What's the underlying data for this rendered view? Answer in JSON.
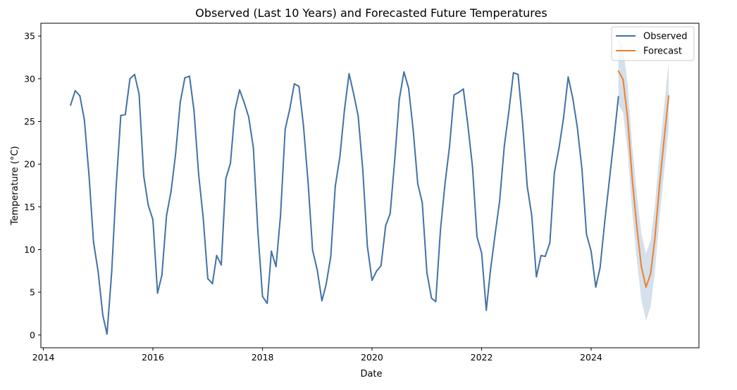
{
  "chart_data": {
    "type": "line",
    "title": "Observed (Last 10 Years) and Forecasted Future Temperatures",
    "xlabel": "Date",
    "ylabel": "Temperature (°C)",
    "xlim": [
      "2013-12-15",
      "2025-12-20"
    ],
    "ylim": [
      -1.5,
      36.5
    ],
    "xticks": [
      {
        "label": "2014",
        "date": "2014-01-01"
      },
      {
        "label": "2016",
        "date": "2016-01-01"
      },
      {
        "label": "2018",
        "date": "2018-01-01"
      },
      {
        "label": "2020",
        "date": "2020-01-01"
      },
      {
        "label": "2022",
        "date": "2022-01-01"
      },
      {
        "label": "2024",
        "date": "2024-01-01"
      }
    ],
    "yticks": [
      0,
      5,
      10,
      15,
      20,
      25,
      30,
      35
    ],
    "grid": false,
    "legend_position": "top-right",
    "colors": {
      "observed": "#4271a5",
      "forecast": "#ef7f2a",
      "band": "#c9d8e6"
    },
    "series": [
      {
        "name": "Observed",
        "color": "#4271a5",
        "points": [
          [
            "2014-07-01",
            26.9
          ],
          [
            "2014-08-01",
            28.6
          ],
          [
            "2014-09-01",
            28.0
          ],
          [
            "2014-10-01",
            25.2
          ],
          [
            "2014-11-01",
            18.7
          ],
          [
            "2014-12-01",
            10.9
          ],
          [
            "2015-01-01",
            7.4
          ],
          [
            "2015-02-01",
            2.3
          ],
          [
            "2015-03-01",
            0.1
          ],
          [
            "2015-04-01",
            7.3
          ],
          [
            "2015-05-01",
            17.4
          ],
          [
            "2015-06-01",
            25.7
          ],
          [
            "2015-07-01",
            25.8
          ],
          [
            "2015-08-01",
            30.0
          ],
          [
            "2015-09-01",
            30.5
          ],
          [
            "2015-10-01",
            28.2
          ],
          [
            "2015-11-01",
            18.6
          ],
          [
            "2015-12-01",
            15.2
          ],
          [
            "2016-01-01",
            13.5
          ],
          [
            "2016-02-01",
            4.9
          ],
          [
            "2016-03-01",
            7.0
          ],
          [
            "2016-04-01",
            14.0
          ],
          [
            "2016-05-01",
            16.8
          ],
          [
            "2016-06-01",
            21.3
          ],
          [
            "2016-07-01",
            27.2
          ],
          [
            "2016-08-01",
            30.1
          ],
          [
            "2016-09-01",
            30.3
          ],
          [
            "2016-10-01",
            26.3
          ],
          [
            "2016-11-01",
            18.8
          ],
          [
            "2016-12-01",
            13.8
          ],
          [
            "2017-01-01",
            6.6
          ],
          [
            "2017-02-01",
            6.0
          ],
          [
            "2017-03-01",
            9.3
          ],
          [
            "2017-04-01",
            8.2
          ],
          [
            "2017-05-01",
            18.3
          ],
          [
            "2017-06-01",
            20.1
          ],
          [
            "2017-07-01",
            26.3
          ],
          [
            "2017-08-01",
            28.7
          ],
          [
            "2017-09-01",
            27.2
          ],
          [
            "2017-10-01",
            25.5
          ],
          [
            "2017-11-01",
            21.9
          ],
          [
            "2017-12-01",
            12.1
          ],
          [
            "2018-01-01",
            4.5
          ],
          [
            "2018-02-01",
            3.7
          ],
          [
            "2018-03-01",
            9.8
          ],
          [
            "2018-04-01",
            8.0
          ],
          [
            "2018-05-01",
            14.0
          ],
          [
            "2018-06-01",
            24.1
          ],
          [
            "2018-07-01",
            26.4
          ],
          [
            "2018-08-01",
            29.4
          ],
          [
            "2018-09-01",
            29.1
          ],
          [
            "2018-10-01",
            24.5
          ],
          [
            "2018-11-01",
            17.8
          ],
          [
            "2018-12-01",
            9.9
          ],
          [
            "2019-01-01",
            7.6
          ],
          [
            "2019-02-01",
            4.0
          ],
          [
            "2019-03-01",
            5.9
          ],
          [
            "2019-04-01",
            9.2
          ],
          [
            "2019-05-01",
            17.4
          ],
          [
            "2019-06-01",
            20.9
          ],
          [
            "2019-07-01",
            26.3
          ],
          [
            "2019-08-01",
            30.6
          ],
          [
            "2019-09-01",
            28.2
          ],
          [
            "2019-10-01",
            25.6
          ],
          [
            "2019-11-01",
            19.2
          ],
          [
            "2019-12-01",
            10.4
          ],
          [
            "2020-01-01",
            6.4
          ],
          [
            "2020-02-01",
            7.5
          ],
          [
            "2020-03-01",
            8.1
          ],
          [
            "2020-04-01",
            12.8
          ],
          [
            "2020-05-01",
            14.2
          ],
          [
            "2020-06-01",
            20.6
          ],
          [
            "2020-07-01",
            27.6
          ],
          [
            "2020-08-01",
            30.8
          ],
          [
            "2020-09-01",
            28.9
          ],
          [
            "2020-10-01",
            24.1
          ],
          [
            "2020-11-01",
            17.7
          ],
          [
            "2020-12-01",
            15.5
          ],
          [
            "2021-01-01",
            7.3
          ],
          [
            "2021-02-01",
            4.3
          ],
          [
            "2021-03-01",
            3.9
          ],
          [
            "2021-04-01",
            12.2
          ],
          [
            "2021-05-01",
            17.6
          ],
          [
            "2021-06-01",
            22.1
          ],
          [
            "2021-07-01",
            28.1
          ],
          [
            "2021-08-01",
            28.4
          ],
          [
            "2021-09-01",
            28.8
          ],
          [
            "2021-10-01",
            24.6
          ],
          [
            "2021-11-01",
            19.7
          ],
          [
            "2021-12-01",
            11.5
          ],
          [
            "2022-01-01",
            9.6
          ],
          [
            "2022-02-01",
            2.9
          ],
          [
            "2022-03-01",
            7.6
          ],
          [
            "2022-04-01",
            11.8
          ],
          [
            "2022-05-01",
            15.7
          ],
          [
            "2022-06-01",
            22.1
          ],
          [
            "2022-07-01",
            26.1
          ],
          [
            "2022-08-01",
            30.7
          ],
          [
            "2022-09-01",
            30.5
          ],
          [
            "2022-10-01",
            24.8
          ],
          [
            "2022-11-01",
            17.4
          ],
          [
            "2022-12-01",
            14.0
          ],
          [
            "2023-01-01",
            6.8
          ],
          [
            "2023-02-01",
            9.3
          ],
          [
            "2023-03-01",
            9.2
          ],
          [
            "2023-04-01",
            10.8
          ],
          [
            "2023-05-01",
            19.0
          ],
          [
            "2023-06-01",
            21.9
          ],
          [
            "2023-07-01",
            25.4
          ],
          [
            "2023-08-01",
            30.2
          ],
          [
            "2023-09-01",
            27.7
          ],
          [
            "2023-10-01",
            24.3
          ],
          [
            "2023-11-01",
            19.4
          ],
          [
            "2023-12-01",
            11.8
          ],
          [
            "2024-01-01",
            9.8
          ],
          [
            "2024-02-01",
            5.6
          ],
          [
            "2024-03-01",
            7.9
          ],
          [
            "2024-04-01",
            13.3
          ],
          [
            "2024-05-01",
            18.0
          ],
          [
            "2024-06-01",
            22.9
          ],
          [
            "2024-07-01",
            27.9
          ]
        ]
      },
      {
        "name": "Forecast",
        "color": "#ef7f2a",
        "points": [
          [
            "2024-07-01",
            30.9
          ],
          [
            "2024-08-01",
            29.9
          ],
          [
            "2024-09-01",
            25.3
          ],
          [
            "2024-10-01",
            18.3
          ],
          [
            "2024-11-01",
            12.6
          ],
          [
            "2024-12-01",
            8.0
          ],
          [
            "2025-01-01",
            5.6
          ],
          [
            "2025-02-01",
            7.2
          ],
          [
            "2025-03-01",
            11.3
          ],
          [
            "2025-04-01",
            17.5
          ],
          [
            "2025-05-01",
            22.8
          ],
          [
            "2025-06-01",
            28.0
          ]
        ],
        "lower": [
          27.0,
          26.0,
          21.4,
          14.4,
          8.7,
          4.1,
          1.7,
          3.3,
          7.4,
          13.6,
          18.9,
          24.1
        ],
        "upper": [
          34.8,
          33.8,
          29.2,
          22.2,
          16.5,
          11.9,
          9.5,
          11.1,
          15.2,
          21.4,
          26.7,
          31.9
        ]
      }
    ]
  }
}
